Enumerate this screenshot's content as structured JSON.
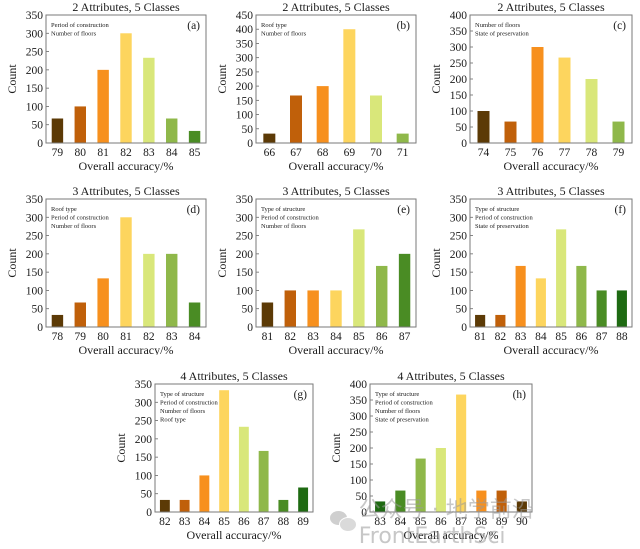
{
  "palette": {
    "c1": "#5c3a06",
    "c2": "#c0600a",
    "c3": "#f7901e",
    "c4": "#fdd55e",
    "c5": "#d9e77a",
    "c6": "#8fb84a",
    "c7": "#4a8c24",
    "c8": "#1e6a12"
  },
  "chart_data": [
    {
      "type": "bar",
      "label": "(a)",
      "title": "2 Attributes, 5 Classes",
      "xlabel": "Overall accuracy/%",
      "ylabel": "Count",
      "legend_lines": [
        "Period of construction",
        "Number of floors"
      ],
      "categories": [
        "79",
        "80",
        "81",
        "82",
        "83",
        "84",
        "85"
      ],
      "values": [
        67,
        100,
        200,
        300,
        233,
        67,
        33
      ],
      "colors": [
        "c1",
        "c2",
        "c3",
        "c4",
        "c5",
        "c6",
        "c7"
      ],
      "ylim": [
        0,
        350
      ],
      "yticks": [
        0,
        50,
        100,
        150,
        200,
        250,
        300,
        350
      ]
    },
    {
      "type": "bar",
      "label": "(b)",
      "title": "2 Attributes, 5 Classes",
      "xlabel": "Overall accuracy/%",
      "ylabel": "Count",
      "legend_lines": [
        "Roof type",
        "Number of floors"
      ],
      "categories": [
        "66",
        "67",
        "68",
        "69",
        "70",
        "71"
      ],
      "values": [
        33,
        167,
        200,
        400,
        167,
        33
      ],
      "colors": [
        "c1",
        "c2",
        "c3",
        "c4",
        "c5",
        "c6"
      ],
      "ylim": [
        0,
        450
      ],
      "yticks": [
        0,
        50,
        100,
        150,
        200,
        250,
        300,
        350,
        400,
        450
      ]
    },
    {
      "type": "bar",
      "label": "(c)",
      "title": "2 Attributes, 5 Classes",
      "xlabel": "Overall accuracy/%",
      "ylabel": "Count",
      "legend_lines": [
        "Number of floors",
        "State of preservation"
      ],
      "categories": [
        "74",
        "75",
        "76",
        "77",
        "78",
        "79"
      ],
      "values": [
        100,
        67,
        300,
        267,
        200,
        67
      ],
      "colors": [
        "c1",
        "c2",
        "c3",
        "c4",
        "c5",
        "c6"
      ],
      "ylim": [
        0,
        400
      ],
      "yticks": [
        0,
        50,
        100,
        150,
        200,
        250,
        300,
        350,
        400
      ]
    },
    {
      "type": "bar",
      "label": "(d)",
      "title": "3 Attributes, 5 Classes",
      "xlabel": "Overall accuracy/%",
      "ylabel": "Count",
      "legend_lines": [
        "Roof type",
        "Period of construction",
        "Number of floors"
      ],
      "categories": [
        "78",
        "79",
        "80",
        "81",
        "82",
        "83",
        "84"
      ],
      "values": [
        33,
        67,
        133,
        300,
        200,
        200,
        67
      ],
      "colors": [
        "c1",
        "c2",
        "c3",
        "c4",
        "c5",
        "c6",
        "c7"
      ],
      "ylim": [
        0,
        350
      ],
      "yticks": [
        0,
        50,
        100,
        150,
        200,
        250,
        300,
        350
      ]
    },
    {
      "type": "bar",
      "label": "(e)",
      "title": "3 Attributes, 5 Classes",
      "xlabel": "Overall accuracy/%",
      "ylabel": "Count",
      "legend_lines": [
        "Type of structure",
        "Period of construction",
        "Number of floors"
      ],
      "categories": [
        "81",
        "82",
        "83",
        "84",
        "85",
        "86",
        "87"
      ],
      "values": [
        67,
        100,
        100,
        100,
        267,
        167,
        200
      ],
      "colors": [
        "c1",
        "c2",
        "c3",
        "c4",
        "c5",
        "c6",
        "c7"
      ],
      "ylim": [
        0,
        350
      ],
      "yticks": [
        0,
        50,
        100,
        150,
        200,
        250,
        300,
        350
      ]
    },
    {
      "type": "bar",
      "label": "(f)",
      "title": "3 Attributes, 5 Classes",
      "xlabel": "Overall accuracy/%",
      "ylabel": "Count",
      "legend_lines": [
        "Type of structure",
        "Period of construction",
        "State of preservation"
      ],
      "categories": [
        "81",
        "82",
        "83",
        "84",
        "85",
        "86",
        "87",
        "88"
      ],
      "values": [
        33,
        33,
        167,
        133,
        267,
        167,
        100,
        100
      ],
      "colors": [
        "c1",
        "c2",
        "c3",
        "c4",
        "c5",
        "c6",
        "c7",
        "c8"
      ],
      "ylim": [
        0,
        350
      ],
      "yticks": [
        0,
        50,
        100,
        150,
        200,
        250,
        300,
        350
      ]
    },
    {
      "type": "bar",
      "label": "(g)",
      "title": "4 Attributes, 5 Classes",
      "xlabel": "Overall accuracy/%",
      "ylabel": "Count",
      "legend_lines": [
        "Type of structure",
        "Period of construction",
        "Number of floors",
        "Roof type"
      ],
      "categories": [
        "82",
        "83",
        "84",
        "85",
        "86",
        "87",
        "88",
        "89"
      ],
      "values": [
        33,
        33,
        100,
        333,
        233,
        167,
        33,
        67
      ],
      "colors": [
        "c1",
        "c2",
        "c3",
        "c4",
        "c5",
        "c6",
        "c7",
        "c8"
      ],
      "ylim": [
        0,
        350
      ],
      "yticks": [
        0,
        50,
        100,
        150,
        200,
        250,
        300,
        350
      ]
    },
    {
      "type": "bar",
      "label": "(h)",
      "title": "4 Attributes, 5 Classes",
      "xlabel": "Overall accuracy/%",
      "ylabel": "Count",
      "legend_lines": [
        "Type of structure",
        "Period of construction",
        "Number of floors",
        "State of preservation"
      ],
      "categories": [
        "83",
        "84",
        "85",
        "86",
        "87",
        "88",
        "89",
        "90"
      ],
      "values": [
        33,
        67,
        167,
        200,
        367,
        67,
        67,
        33
      ],
      "colors": [
        "c8",
        "c7",
        "c6",
        "c5",
        "c4",
        "c3",
        "c2",
        "c1"
      ],
      "ylim": [
        0,
        400
      ],
      "yticks": [
        0,
        50,
        100,
        150,
        200,
        250,
        300,
        350,
        400
      ]
    }
  ],
  "watermark": {
    "icon": "wechat-icon",
    "text": "公众号 · 地学前沿FrontEarthSci"
  }
}
